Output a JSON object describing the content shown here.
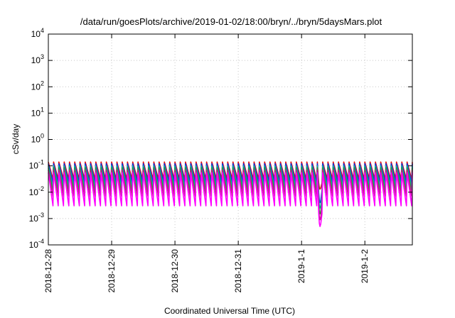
{
  "chart_data": {
    "type": "line",
    "title": "/data/run/goesPlots/archive/2019-01-02/18:00/bryn/../bryn/5daysMars.plot",
    "xlabel": "Coordinated Universal Time (UTC)",
    "ylabel": "cSv/day",
    "yscale": "log",
    "ylim": [
      0.0001,
      10000
    ],
    "xlim": [
      "2018-12-28 00:00",
      "2019-01-02 18:00"
    ],
    "x_ticks": [
      "2018-12-28",
      "2018-12-29",
      "2018-12-30",
      "2018-12-31",
      "2019-1-1",
      "2019-1-2"
    ],
    "y_ticks": [
      {
        "value": 0.0001,
        "base": "10",
        "exp": "-4"
      },
      {
        "value": 0.001,
        "base": "10",
        "exp": "-3"
      },
      {
        "value": 0.01,
        "base": "10",
        "exp": "-2"
      },
      {
        "value": 0.1,
        "base": "10",
        "exp": "-1"
      },
      {
        "value": 1,
        "base": "10",
        "exp": "0"
      },
      {
        "value": 10,
        "base": "10",
        "exp": "1"
      },
      {
        "value": 100,
        "base": "10",
        "exp": "2"
      },
      {
        "value": 1000,
        "base": "10",
        "exp": "3"
      },
      {
        "value": 10000,
        "base": "10",
        "exp": "4"
      }
    ],
    "grid": true,
    "legend": "none",
    "pattern": {
      "description": "sawtooth: sharp rise at each sample then slow decay",
      "period_hours": 2,
      "dip_start": "2019-01-01 06:00",
      "dip_end": "2019-01-01 08:00"
    },
    "series": [
      {
        "color": "#e01010",
        "peak": 0.14,
        "trough": 0.025,
        "dip_min": 0.013
      },
      {
        "color": "#1030e0",
        "peak": 0.12,
        "trough": 0.018,
        "dip_min": 0.004
      },
      {
        "color": "#00b0b0",
        "peak": 0.1,
        "trough": 0.012,
        "dip_min": 0.0025
      },
      {
        "color": "#20a040",
        "peak": 0.085,
        "trough": 0.008,
        "dip_min": 0.0015
      },
      {
        "color": "#c02080",
        "peak": 0.07,
        "trough": 0.005,
        "dip_min": 0.0009
      },
      {
        "color": "#ff00ff",
        "peak": 0.055,
        "trough": 0.002,
        "dip_min": 0.0005
      }
    ]
  }
}
